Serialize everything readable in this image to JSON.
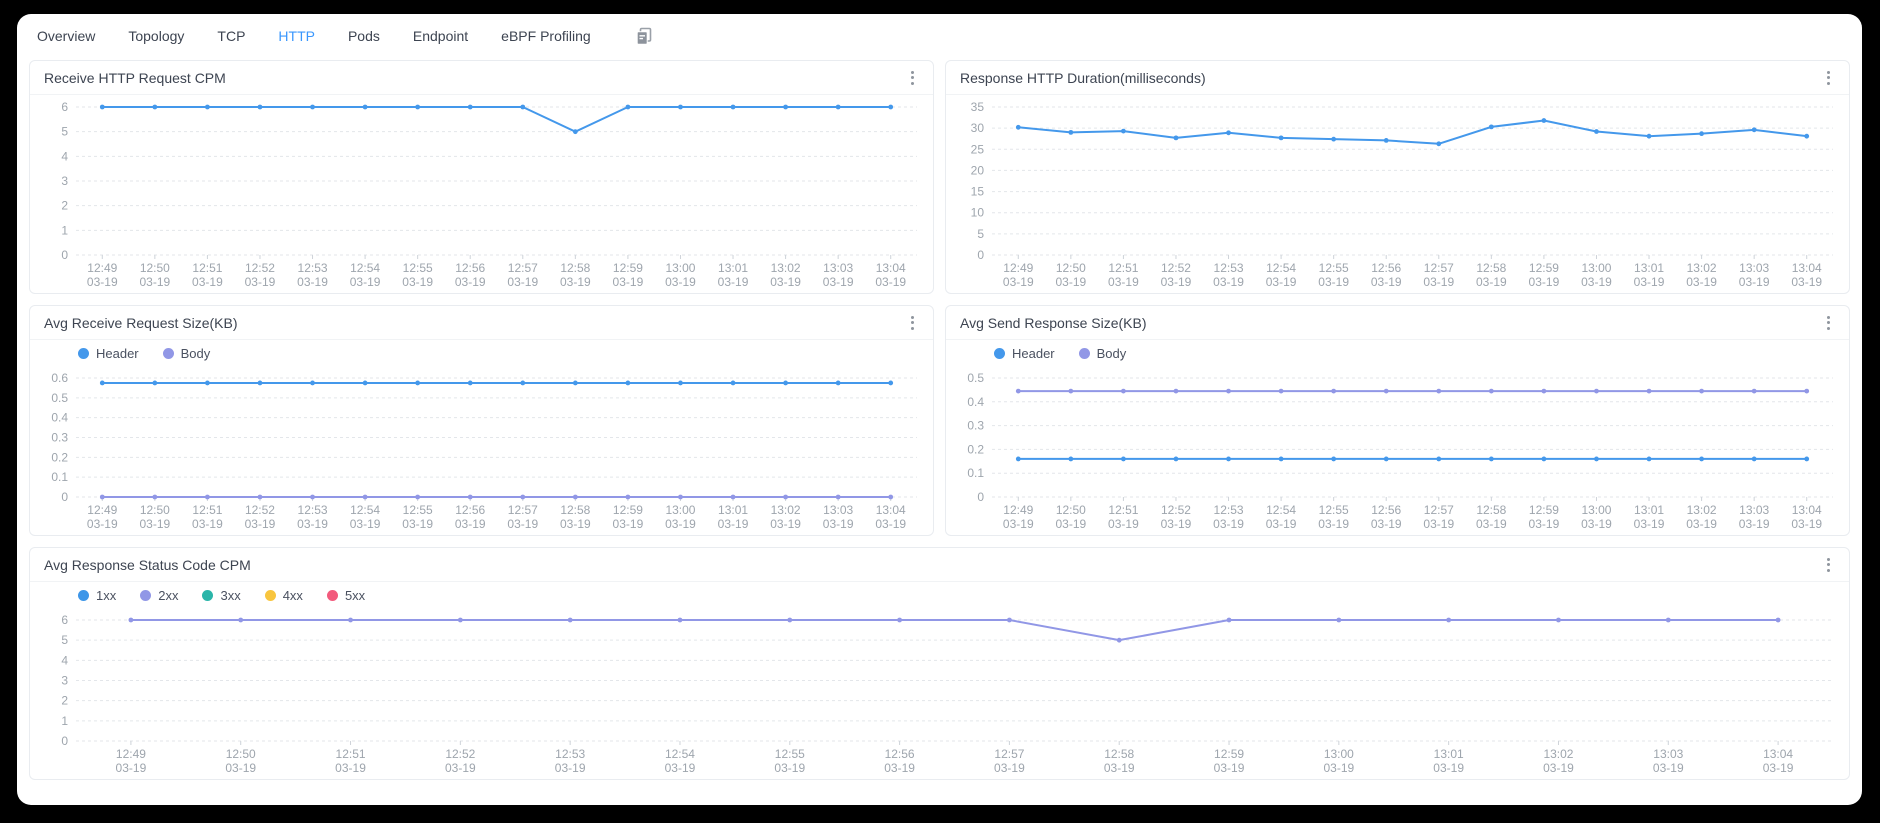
{
  "tabs": {
    "items": [
      {
        "label": "Overview",
        "active": false
      },
      {
        "label": "Topology",
        "active": false
      },
      {
        "label": "TCP",
        "active": false
      },
      {
        "label": "HTTP",
        "active": true
      },
      {
        "label": "Pods",
        "active": false
      },
      {
        "label": "Endpoint",
        "active": false
      },
      {
        "label": "eBPF Profiling",
        "active": false
      }
    ]
  },
  "colors": {
    "active_tab": "#3a97fd",
    "series_blue": "#4498eb",
    "series_purple": "#9197e6",
    "series_teal": "#2ab5a9",
    "series_yellow": "#f8c53e",
    "series_red": "#f25a7c",
    "grid_line": "#e3e6ea",
    "axis_text": "#9ea5ad"
  },
  "chart_data": [
    {
      "type": "line",
      "title": "Receive HTTP Request CPM",
      "legend_visible": false,
      "ylim": [
        0,
        6
      ],
      "yticks": [
        0,
        1,
        2,
        3,
        4,
        5,
        6
      ],
      "categories": [
        "12:49",
        "12:50",
        "12:51",
        "12:52",
        "12:53",
        "12:54",
        "12:55",
        "12:56",
        "12:57",
        "12:58",
        "12:59",
        "13:00",
        "13:01",
        "13:02",
        "13:03",
        "13:04"
      ],
      "date_suffix": "03-19",
      "series": [
        {
          "name": "",
          "color": "#4498eb",
          "values": [
            6,
            6,
            6,
            6,
            6,
            6,
            6,
            6,
            6,
            5,
            6,
            6,
            6,
            6,
            6,
            6
          ]
        }
      ]
    },
    {
      "type": "line",
      "title": "Response HTTP Duration(milliseconds)",
      "legend_visible": false,
      "ylim": [
        0,
        35
      ],
      "yticks": [
        0,
        5,
        10,
        15,
        20,
        25,
        30,
        35
      ],
      "categories": [
        "12:49",
        "12:50",
        "12:51",
        "12:52",
        "12:53",
        "12:54",
        "12:55",
        "12:56",
        "12:57",
        "12:58",
        "12:59",
        "13:00",
        "13:01",
        "13:02",
        "13:03",
        "13:04"
      ],
      "date_suffix": "03-19",
      "series": [
        {
          "name": "",
          "color": "#4498eb",
          "values": [
            30.2,
            29,
            29.3,
            27.7,
            28.9,
            27.7,
            27.4,
            27.1,
            26.3,
            30.3,
            31.8,
            29.2,
            28.1,
            28.7,
            29.6,
            28.1
          ]
        }
      ]
    },
    {
      "type": "line",
      "title": "Avg Receive Request Size(KB)",
      "legend_visible": true,
      "ylim": [
        0,
        0.6
      ],
      "yticks": [
        0,
        0.1,
        0.2,
        0.3,
        0.4,
        0.5,
        0.6
      ],
      "categories": [
        "12:49",
        "12:50",
        "12:51",
        "12:52",
        "12:53",
        "12:54",
        "12:55",
        "12:56",
        "12:57",
        "12:58",
        "12:59",
        "13:00",
        "13:01",
        "13:02",
        "13:03",
        "13:04"
      ],
      "date_suffix": "03-19",
      "series": [
        {
          "name": "Header",
          "color": "#4498eb",
          "values": [
            0.575,
            0.575,
            0.575,
            0.575,
            0.575,
            0.575,
            0.575,
            0.575,
            0.575,
            0.575,
            0.575,
            0.575,
            0.575,
            0.575,
            0.575,
            0.575
          ]
        },
        {
          "name": "Body",
          "color": "#9197e6",
          "values": [
            0,
            0,
            0,
            0,
            0,
            0,
            0,
            0,
            0,
            0,
            0,
            0,
            0,
            0,
            0,
            0
          ]
        }
      ]
    },
    {
      "type": "line",
      "title": "Avg Send Response Size(KB)",
      "legend_visible": true,
      "ylim": [
        0,
        0.5
      ],
      "yticks": [
        0,
        0.1,
        0.2,
        0.3,
        0.4,
        0.5
      ],
      "categories": [
        "12:49",
        "12:50",
        "12:51",
        "12:52",
        "12:53",
        "12:54",
        "12:55",
        "12:56",
        "12:57",
        "12:58",
        "12:59",
        "13:00",
        "13:01",
        "13:02",
        "13:03",
        "13:04"
      ],
      "date_suffix": "03-19",
      "series": [
        {
          "name": "Header",
          "color": "#4498eb",
          "values": [
            0.16,
            0.16,
            0.16,
            0.16,
            0.16,
            0.16,
            0.16,
            0.16,
            0.16,
            0.16,
            0.16,
            0.16,
            0.16,
            0.16,
            0.16,
            0.16
          ]
        },
        {
          "name": "Body",
          "color": "#9197e6",
          "values": [
            0.445,
            0.445,
            0.445,
            0.445,
            0.445,
            0.445,
            0.445,
            0.445,
            0.445,
            0.445,
            0.445,
            0.445,
            0.445,
            0.445,
            0.445,
            0.445
          ]
        }
      ]
    },
    {
      "type": "line",
      "title": "Avg Response Status Code CPM",
      "legend_visible": true,
      "ylim": [
        0,
        6
      ],
      "yticks": [
        0,
        1,
        2,
        3,
        4,
        5,
        6
      ],
      "categories": [
        "12:49",
        "12:50",
        "12:51",
        "12:52",
        "12:53",
        "12:54",
        "12:55",
        "12:56",
        "12:57",
        "12:58",
        "12:59",
        "13:00",
        "13:01",
        "13:02",
        "13:03",
        "13:04"
      ],
      "date_suffix": "03-19",
      "series": [
        {
          "name": "1xx",
          "color": "#3d96e8",
          "values": []
        },
        {
          "name": "2xx",
          "color": "#9197e6",
          "values": [
            6,
            6,
            6,
            6,
            6,
            6,
            6,
            6,
            6,
            5,
            6,
            6,
            6,
            6,
            6,
            6
          ]
        },
        {
          "name": "3xx",
          "color": "#2ab5a9",
          "values": []
        },
        {
          "name": "4xx",
          "color": "#f8c53e",
          "values": []
        },
        {
          "name": "5xx",
          "color": "#f25a7c",
          "values": []
        }
      ]
    }
  ]
}
